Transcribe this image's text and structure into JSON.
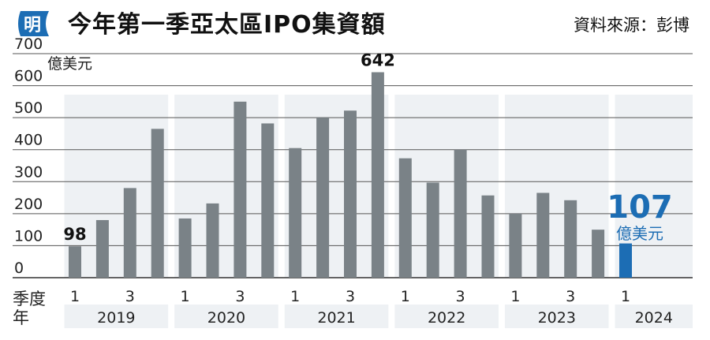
{
  "header": {
    "logo_glyph": "明",
    "title": "今年第一季亞太區IPO集資額",
    "source": "資料來源：彭博"
  },
  "colors": {
    "bar": "#7a8287",
    "highlight": "#1c6db4",
    "band": "#eef1f4",
    "logo": "#1c6db4"
  },
  "chart_data": {
    "type": "bar",
    "unit": "億美元",
    "ylim": [
      0,
      700
    ],
    "yticks": [
      0,
      100,
      200,
      300,
      400,
      500,
      600,
      700
    ],
    "grid": true,
    "xlabel_row1": "季度",
    "xlabel_row2": "年",
    "years": [
      {
        "year": "2019",
        "quarters": [
          "1",
          "",
          "3",
          ""
        ],
        "values": [
          98,
          180,
          280,
          465
        ]
      },
      {
        "year": "2020",
        "quarters": [
          "1",
          "",
          "3",
          ""
        ],
        "values": [
          185,
          232,
          550,
          482
        ]
      },
      {
        "year": "2021",
        "quarters": [
          "1",
          "",
          "3",
          ""
        ],
        "values": [
          405,
          500,
          522,
          642
        ]
      },
      {
        "year": "2022",
        "quarters": [
          "1",
          "",
          "3",
          ""
        ],
        "values": [
          373,
          297,
          400,
          257
        ]
      },
      {
        "year": "2023",
        "quarters": [
          "1",
          "",
          "3",
          ""
        ],
        "values": [
          200,
          265,
          242,
          150
        ]
      },
      {
        "year": "2024",
        "quarters": [
          "1"
        ],
        "values": [
          107
        ]
      }
    ],
    "data_labels": [
      {
        "year_index": 0,
        "bar_index": 0,
        "text": "98"
      },
      {
        "year_index": 2,
        "bar_index": 3,
        "text": "642"
      }
    ],
    "highlight": {
      "year_index": 5,
      "bar_index": 0,
      "value_text": "107",
      "unit_text": "億美元"
    }
  }
}
